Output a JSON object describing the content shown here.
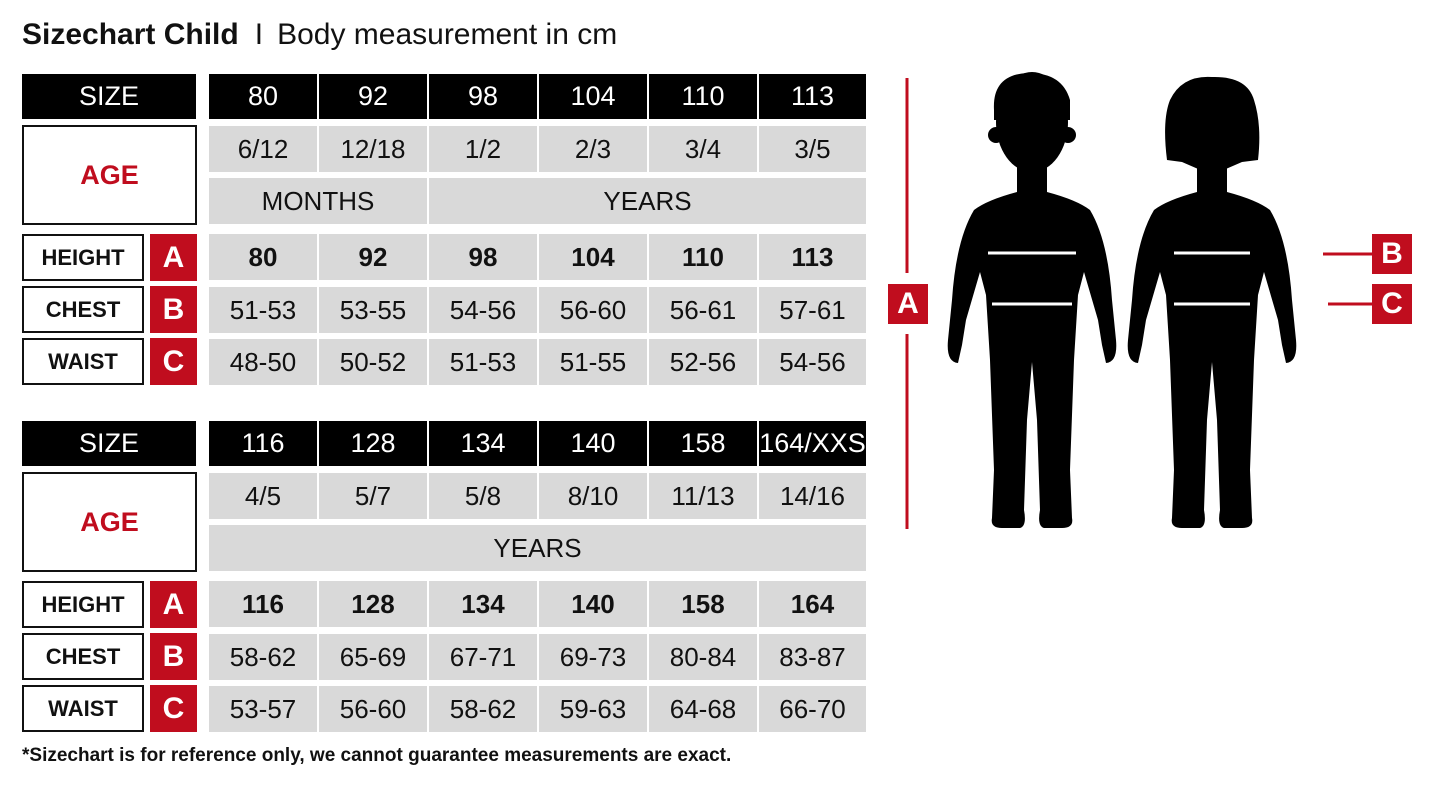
{
  "title": {
    "main": "Sizechart Child",
    "separator": "I",
    "subtitle": "Body measurement in cm"
  },
  "colors": {
    "accent": "#c00d1e",
    "header_bg": "#000000",
    "cell_bg": "#d9d9d9"
  },
  "labels": {
    "size": "SIZE",
    "age": "AGE",
    "height": "HEIGHT",
    "chest": "CHEST",
    "waist": "WAIST",
    "height_letter": "A",
    "chest_letter": "B",
    "waist_letter": "C"
  },
  "tables": [
    {
      "sizes": [
        "80",
        "92",
        "98",
        "104",
        "110",
        "113"
      ],
      "ages": [
        "6/12",
        "12/18",
        "1/2",
        "2/3",
        "3/4",
        "3/5"
      ],
      "age_units": [
        {
          "label": "MONTHS",
          "span": 2
        },
        {
          "label": "YEARS",
          "span": 4
        }
      ],
      "height": [
        "80",
        "92",
        "98",
        "104",
        "110",
        "113"
      ],
      "chest": [
        "51-53",
        "53-55",
        "54-56",
        "56-60",
        "56-61",
        "57-61"
      ],
      "waist": [
        "48-50",
        "50-52",
        "51-53",
        "51-55",
        "52-56",
        "54-56"
      ]
    },
    {
      "sizes": [
        "116",
        "128",
        "134",
        "140",
        "158",
        "164/XXS"
      ],
      "ages": [
        "4/5",
        "5/7",
        "5/8",
        "8/10",
        "11/13",
        "14/16"
      ],
      "age_units": [
        {
          "label": "YEARS",
          "span": 6
        }
      ],
      "height": [
        "116",
        "128",
        "134",
        "140",
        "158",
        "164"
      ],
      "chest": [
        "58-62",
        "65-69",
        "67-71",
        "69-73",
        "80-84",
        "83-87"
      ],
      "waist": [
        "53-57",
        "56-60",
        "58-62",
        "59-63",
        "64-68",
        "66-70"
      ]
    }
  ],
  "figure": {
    "height_marker": "A",
    "chest_marker": "B",
    "waist_marker": "C",
    "silhouettes": [
      "boy-silhouette",
      "girl-silhouette"
    ]
  },
  "footnote": "*Sizechart is for reference only, we cannot guarantee measurements are exact."
}
